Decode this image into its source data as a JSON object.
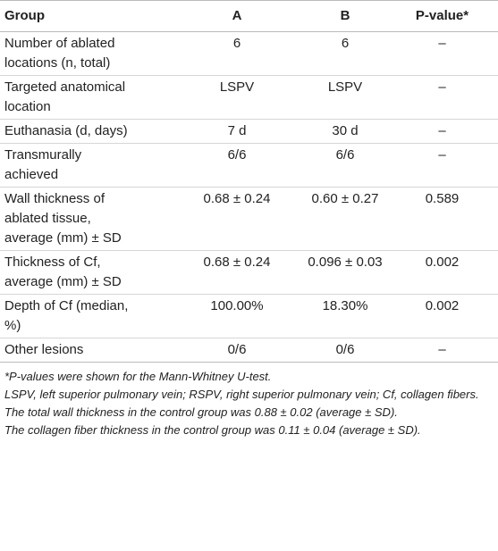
{
  "table": {
    "header": [
      "Group",
      "A",
      "B",
      "P-value*"
    ],
    "rows": [
      [
        "Number of ablated locations (n, total)",
        "6",
        "6",
        "–"
      ],
      [
        "Targeted anatomical location",
        "LSPV",
        "LSPV",
        "–"
      ],
      [
        "Euthanasia (d, days)",
        "7 d",
        "30 d",
        "–"
      ],
      [
        "Transmurally achieved",
        "6/6",
        "6/6",
        "–"
      ],
      [
        "Wall thickness of ablated tissue, average (mm) ± SD",
        "0.68 ± 0.24",
        "0.60 ± 0.27",
        "0.589"
      ],
      [
        "Thickness of Cf, average (mm) ± SD",
        "0.68 ± 0.24",
        "0.096 ± 0.03",
        "0.002"
      ],
      [
        "Depth of Cf (median, %)",
        "100.00%",
        "18.30%",
        "0.002"
      ],
      [
        "Other lesions",
        "0/6",
        "0/6",
        "–"
      ]
    ],
    "footnotes": [
      "*P-values were shown for the Mann-Whitney U-test.",
      "LSPV, left superior pulmonary vein; RSPV, right superior pulmonary vein; Cf, collagen fibers.",
      "The total wall thickness in the control group was 0.88 ± 0.02 (average ± SD).",
      "The collagen fiber thickness in the control group was 0.11 ± 0.04 (average ± SD)."
    ]
  }
}
